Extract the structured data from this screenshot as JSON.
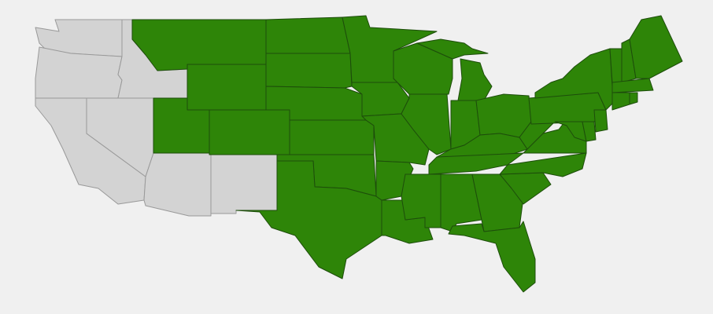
{
  "map": {
    "type": "choropleth",
    "region": "contiguous-united-states",
    "colors": {
      "background": "#f0f0f0",
      "highlighted_fill": "#2e8508",
      "highlighted_border": "#1d4d0b",
      "default_fill": "#d3d3d3",
      "default_border": "#999999"
    },
    "states": [
      {
        "id": "WA",
        "highlighted": false
      },
      {
        "id": "OR",
        "highlighted": false
      },
      {
        "id": "CA",
        "highlighted": false
      },
      {
        "id": "NV",
        "highlighted": false
      },
      {
        "id": "ID",
        "highlighted": false
      },
      {
        "id": "AZ",
        "highlighted": false
      },
      {
        "id": "NM",
        "highlighted": false
      },
      {
        "id": "MT",
        "highlighted": true
      },
      {
        "id": "WY",
        "highlighted": true
      },
      {
        "id": "UT",
        "highlighted": true
      },
      {
        "id": "CO",
        "highlighted": true
      },
      {
        "id": "ND",
        "highlighted": true
      },
      {
        "id": "SD",
        "highlighted": true
      },
      {
        "id": "NE",
        "highlighted": true
      },
      {
        "id": "KS",
        "highlighted": true
      },
      {
        "id": "OK",
        "highlighted": true
      },
      {
        "id": "TX",
        "highlighted": true
      },
      {
        "id": "MN",
        "highlighted": true
      },
      {
        "id": "IA",
        "highlighted": true
      },
      {
        "id": "MO",
        "highlighted": true
      },
      {
        "id": "AR",
        "highlighted": true
      },
      {
        "id": "LA",
        "highlighted": true
      },
      {
        "id": "WI",
        "highlighted": true
      },
      {
        "id": "IL",
        "highlighted": true
      },
      {
        "id": "MI",
        "highlighted": true
      },
      {
        "id": "IN",
        "highlighted": true
      },
      {
        "id": "OH",
        "highlighted": true
      },
      {
        "id": "KY",
        "highlighted": true
      },
      {
        "id": "TN",
        "highlighted": true
      },
      {
        "id": "MS",
        "highlighted": true
      },
      {
        "id": "AL",
        "highlighted": true
      },
      {
        "id": "GA",
        "highlighted": true
      },
      {
        "id": "FL",
        "highlighted": true
      },
      {
        "id": "SC",
        "highlighted": true
      },
      {
        "id": "NC",
        "highlighted": true
      },
      {
        "id": "VA",
        "highlighted": true
      },
      {
        "id": "WV",
        "highlighted": true
      },
      {
        "id": "PA",
        "highlighted": true
      },
      {
        "id": "NY",
        "highlighted": true
      },
      {
        "id": "NJ",
        "highlighted": true
      },
      {
        "id": "MD",
        "highlighted": true
      },
      {
        "id": "DE",
        "highlighted": true
      },
      {
        "id": "VT",
        "highlighted": true
      },
      {
        "id": "NH",
        "highlighted": true
      },
      {
        "id": "ME",
        "highlighted": true
      },
      {
        "id": "MA",
        "highlighted": true
      },
      {
        "id": "CT",
        "highlighted": true
      },
      {
        "id": "RI",
        "highlighted": true
      }
    ]
  }
}
